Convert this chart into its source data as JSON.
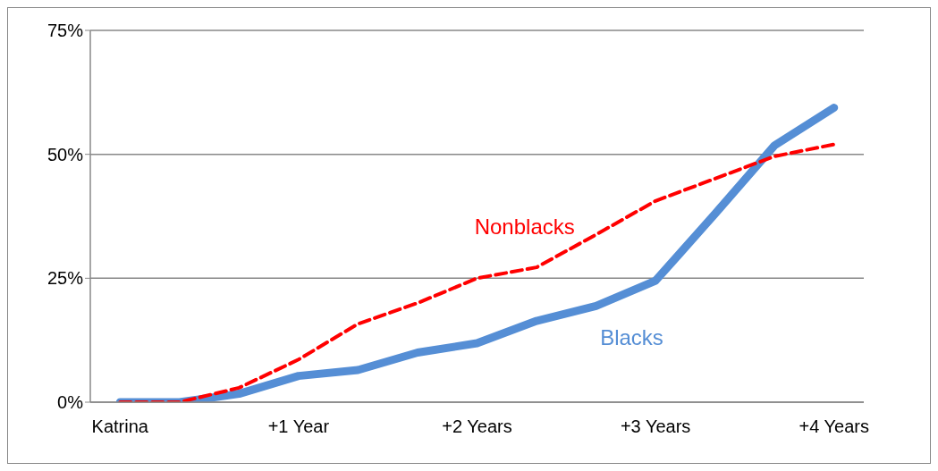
{
  "chart_data": {
    "type": "line",
    "categories": [
      "Katrina",
      null,
      null,
      "+1 Year",
      null,
      null,
      "+2 Years",
      null,
      null,
      "+3 Years",
      null,
      null,
      "+4 Years"
    ],
    "series": [
      {
        "name": "Blacks",
        "color": "#558ed5",
        "line_style": "solid",
        "values": [
          0,
          0,
          1.7,
          5.3,
          6.5,
          10,
          11.9,
          16.4,
          19.4,
          24.5,
          38,
          51.8,
          59.4
        ]
      },
      {
        "name": "Nonblacks",
        "color": "#ff0000",
        "line_style": "dashed",
        "values": [
          0,
          0,
          2.9,
          8.6,
          15.8,
          20,
          25,
          27.2,
          33.8,
          40.6,
          45.1,
          49.6,
          52
        ]
      }
    ],
    "ylim": [
      0,
      75
    ],
    "yticks": [
      {
        "value": 0,
        "label": "0%"
      },
      {
        "value": 25,
        "label": "25%"
      },
      {
        "value": 50,
        "label": "50%"
      },
      {
        "value": 75,
        "label": "75%"
      }
    ],
    "grid": "y",
    "legend": false,
    "marker": "none"
  }
}
